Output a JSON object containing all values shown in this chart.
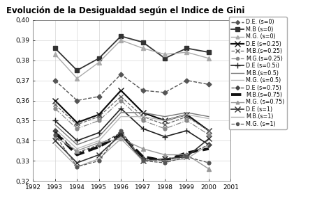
{
  "title": "Evolución de la Desigualdad según el Indice de Gini",
  "years": [
    1993,
    1994,
    1995,
    1996,
    1997,
    1998,
    1999,
    2000
  ],
  "series": [
    {
      "name": "D.E. (s=0)",
      "values": [
        0.37,
        0.36,
        0.362,
        0.373,
        0.365,
        0.364,
        0.37,
        0.368
      ],
      "color": "#555555",
      "linestyle": "--",
      "marker": "D",
      "markersize": 3.5,
      "linewidth": 1.0,
      "markerfacecolor": "#555555"
    },
    {
      "name": "M.B (s=0)",
      "values": [
        0.386,
        0.375,
        0.381,
        0.392,
        0.389,
        0.381,
        0.386,
        0.384
      ],
      "color": "#333333",
      "linestyle": "-",
      "marker": "s",
      "markersize": 4.5,
      "linewidth": 1.3,
      "markerfacecolor": "#333333"
    },
    {
      "name": "M.G. (s=0)",
      "values": [
        0.383,
        0.371,
        0.379,
        0.39,
        0.386,
        0.383,
        0.384,
        0.381
      ],
      "color": "#aaaaaa",
      "linestyle": "-",
      "marker": "^",
      "markersize": 4,
      "linewidth": 1.0,
      "markerfacecolor": "#aaaaaa"
    },
    {
      "name": "D.E (s=0.25)",
      "values": [
        0.36,
        0.349,
        0.353,
        0.365,
        0.354,
        0.35,
        0.353,
        0.345
      ],
      "color": "#111111",
      "linestyle": "-",
      "marker": "x",
      "markersize": 6,
      "linewidth": 1.6,
      "markerfacecolor": "#111111"
    },
    {
      "name": "M.B.(s=0.25)",
      "values": [
        0.358,
        0.348,
        0.352,
        0.362,
        0.352,
        0.348,
        0.352,
        0.345
      ],
      "color": "#666666",
      "linestyle": "--",
      "marker": "x",
      "markersize": 5,
      "linewidth": 0.9,
      "markerfacecolor": "#666666"
    },
    {
      "name": "M.G.(s=0.25)",
      "values": [
        0.356,
        0.346,
        0.35,
        0.36,
        0.35,
        0.346,
        0.35,
        0.343
      ],
      "color": "#888888",
      "linestyle": "-.",
      "marker": "o",
      "markersize": 3.5,
      "linewidth": 0.9,
      "markerfacecolor": "#888888"
    },
    {
      "name": "D.E (s=0.5i)",
      "values": [
        0.35,
        0.34,
        0.344,
        0.356,
        0.346,
        0.342,
        0.345,
        0.338
      ],
      "color": "#222222",
      "linestyle": "-",
      "marker": "+",
      "markersize": 6,
      "linewidth": 1.2,
      "markerfacecolor": "#222222"
    },
    {
      "name": "M.B.(s=0.5)",
      "values": [
        0.348,
        0.338,
        0.342,
        0.354,
        0.354,
        0.352,
        0.354,
        0.352
      ],
      "color": "#777777",
      "linestyle": "-",
      "marker": "None",
      "markersize": 3,
      "linewidth": 1.0,
      "markerfacecolor": "#777777"
    },
    {
      "name": "M.G. (s=0.5)",
      "values": [
        0.346,
        0.336,
        0.34,
        0.352,
        0.352,
        0.35,
        0.353,
        0.351
      ],
      "color": "#bbbbbb",
      "linestyle": "-",
      "marker": "None",
      "markersize": 3,
      "linewidth": 1.0,
      "markerfacecolor": "#bbbbbb"
    },
    {
      "name": "D.E (s=0.75)",
      "values": [
        0.345,
        0.334,
        0.338,
        0.344,
        0.331,
        0.33,
        0.333,
        0.338
      ],
      "color": "#444444",
      "linestyle": "--",
      "marker": "D",
      "markersize": 3.5,
      "linewidth": 0.9,
      "markerfacecolor": "#444444"
    },
    {
      "name": "M.B.(s=0.75)",
      "values": [
        0.344,
        0.333,
        0.337,
        0.343,
        0.332,
        0.33,
        0.334,
        0.336
      ],
      "color": "#111111",
      "linestyle": "--",
      "marker": "None",
      "markersize": 3,
      "linewidth": 2.8,
      "markerfacecolor": "#111111"
    },
    {
      "name": "M.G. (s=0.75)",
      "values": [
        0.342,
        0.335,
        0.339,
        0.341,
        0.336,
        0.333,
        0.333,
        0.326
      ],
      "color": "#999999",
      "linestyle": "-",
      "marker": "^",
      "markersize": 4,
      "linewidth": 1.0,
      "markerfacecolor": "#999999"
    },
    {
      "name": "D.E (s=1)",
      "values": [
        0.34,
        0.329,
        0.333,
        0.343,
        0.33,
        0.331,
        0.332,
        0.341
      ],
      "color": "#333333",
      "linestyle": "-",
      "marker": "x",
      "markersize": 6,
      "linewidth": 1.2,
      "markerfacecolor": "#333333"
    },
    {
      "name": "M.B.(s=1)",
      "values": [
        0.338,
        0.327,
        0.331,
        0.341,
        0.33,
        0.33,
        0.331,
        0.338
      ],
      "color": "#aaaaaa",
      "linestyle": "-",
      "marker": "None",
      "markersize": 3,
      "linewidth": 1.0,
      "markerfacecolor": "#aaaaaa"
    },
    {
      "name": "M.G. (s=1)",
      "values": [
        0.343,
        0.327,
        0.33,
        0.345,
        0.33,
        0.329,
        0.332,
        0.329
      ],
      "color": "#555555",
      "linestyle": "--",
      "marker": "o",
      "markersize": 3.5,
      "linewidth": 0.9,
      "markerfacecolor": "#555555"
    }
  ],
  "xlim": [
    1992,
    2001
  ],
  "ylim": [
    0.32,
    0.4
  ],
  "yticks": [
    0.32,
    0.33,
    0.34,
    0.35,
    0.36,
    0.37,
    0.38,
    0.39,
    0.4
  ],
  "xticks": [
    1992,
    1993,
    1994,
    1995,
    1996,
    1997,
    1998,
    1999,
    2000,
    2001
  ],
  "background_color": "#ffffff",
  "legend_fontsize": 5.8,
  "title_fontsize": 8.5
}
